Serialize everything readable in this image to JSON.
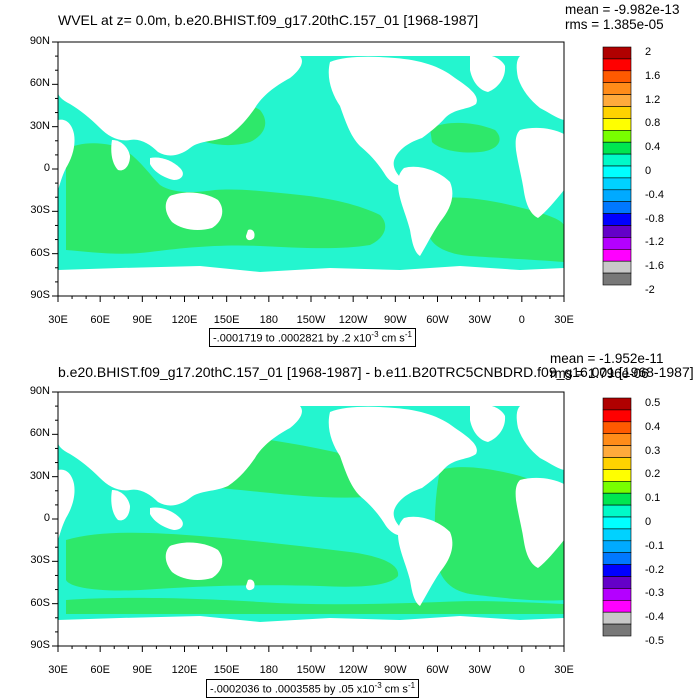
{
  "panels": [
    {
      "title": "WVEL at z=   0.0m, b.e20.BHIST.f09_g17.20thC.157_01 [1968-1987]",
      "mean_text": "mean = -9.982e-13",
      "rms_text": "rms = 1.385e-05",
      "range_note_prefix": "-.0001719 to .0002821 by .2 x10",
      "range_note_exp": "-3",
      "range_note_unit": " cm s",
      "range_note_unit_exp": "-1",
      "colorbar_labels": [
        "2",
        "1.6",
        "1.2",
        "0.8",
        "0.4",
        "0",
        "-0.4",
        "-0.8",
        "-1.2",
        "-1.6",
        "-2"
      ]
    },
    {
      "title": "b.e20.BHIST.f09_g17.20thC.157_01 [1968-1987] - b.e11.B20TRC5CNBDRD.f09_g16.001 [1968-1987]",
      "mean_text": "mean = -1.952e-11",
      "rms_text": "rms = 1.796e-06",
      "range_note_prefix": "-.0002036 to .0003585 by .05 x10",
      "range_note_exp": "-3",
      "range_note_unit": " cm s",
      "range_note_unit_exp": "-1",
      "colorbar_labels": [
        "0.5",
        "0.4",
        "0.3",
        "0.2",
        "0.1",
        "0",
        "-0.1",
        "-0.2",
        "-0.3",
        "-0.4",
        "-0.5"
      ]
    }
  ],
  "lat_labels": [
    "90N",
    "60N",
    "30N",
    "0",
    "30S",
    "60S",
    "90S"
  ],
  "lon_labels": [
    "30E",
    "60E",
    "90E",
    "120E",
    "150E",
    "180",
    "150W",
    "120W",
    "90W",
    "60W",
    "30W",
    "0",
    "30E"
  ],
  "colorbar_colors": [
    "#b00000",
    "#ff0000",
    "#ff5a00",
    "#ff8c19",
    "#ffaa3c",
    "#ffd200",
    "#ffff00",
    "#78ff00",
    "#00e650",
    "#00fac8",
    "#00ffff",
    "#00d2ff",
    "#00aaff",
    "#0078ff",
    "#0000ff",
    "#6400c8",
    "#b400ff",
    "#ff00ff",
    "#c8c8c8",
    "#787878"
  ],
  "map_colors": {
    "land": "#ffffff",
    "positive": "#2ee86a",
    "negative": "#24f5cf"
  }
}
